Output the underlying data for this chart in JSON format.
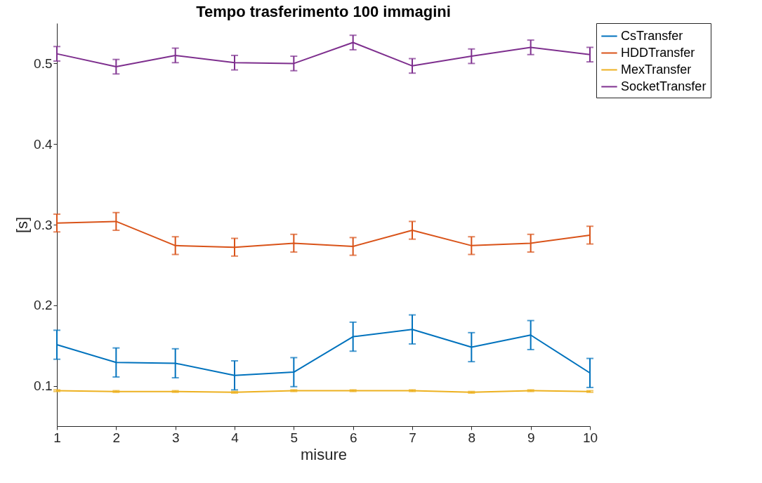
{
  "chart_data": {
    "type": "line",
    "title": "Tempo trasferimento 100 immagini",
    "xlabel": "misure",
    "ylabel": "[s]",
    "x": [
      1,
      2,
      3,
      4,
      5,
      6,
      7,
      8,
      9,
      10
    ],
    "series": [
      {
        "name": "CsTransfer",
        "color": "#0072bd",
        "values": [
          0.151,
          0.129,
          0.128,
          0.113,
          0.117,
          0.161,
          0.17,
          0.148,
          0.163,
          0.116
        ],
        "errors": [
          0.018,
          0.018,
          0.018,
          0.018,
          0.018,
          0.018,
          0.018,
          0.018,
          0.018,
          0.018
        ]
      },
      {
        "name": "HDDTransfer",
        "color": "#d95319",
        "values": [
          0.302,
          0.304,
          0.274,
          0.272,
          0.277,
          0.273,
          0.293,
          0.274,
          0.277,
          0.287
        ],
        "errors": [
          0.011,
          0.011,
          0.011,
          0.011,
          0.011,
          0.011,
          0.011,
          0.011,
          0.011,
          0.011
        ]
      },
      {
        "name": "MexTransfer",
        "color": "#edb120",
        "values": [
          0.094,
          0.093,
          0.093,
          0.092,
          0.094,
          0.094,
          0.094,
          0.092,
          0.094,
          0.093
        ],
        "errors": [
          0.001,
          0.001,
          0.001,
          0.001,
          0.001,
          0.001,
          0.001,
          0.001,
          0.001,
          0.001
        ]
      },
      {
        "name": "SocketTransfer",
        "color": "#7e2f8e",
        "values": [
          0.512,
          0.496,
          0.51,
          0.501,
          0.5,
          0.526,
          0.497,
          0.509,
          0.52,
          0.511
        ],
        "errors": [
          0.009,
          0.009,
          0.009,
          0.009,
          0.009,
          0.009,
          0.009,
          0.009,
          0.009,
          0.009
        ]
      }
    ],
    "xlim": [
      1,
      10
    ],
    "xticks": [
      1,
      2,
      3,
      4,
      5,
      6,
      7,
      8,
      9,
      10
    ],
    "ylim": [
      0.05,
      0.55
    ],
    "yticks": [
      0.1,
      0.2,
      0.3,
      0.4,
      0.5
    ],
    "legend": "top right",
    "grid": false,
    "marker": "none",
    "line_style": "solid"
  }
}
